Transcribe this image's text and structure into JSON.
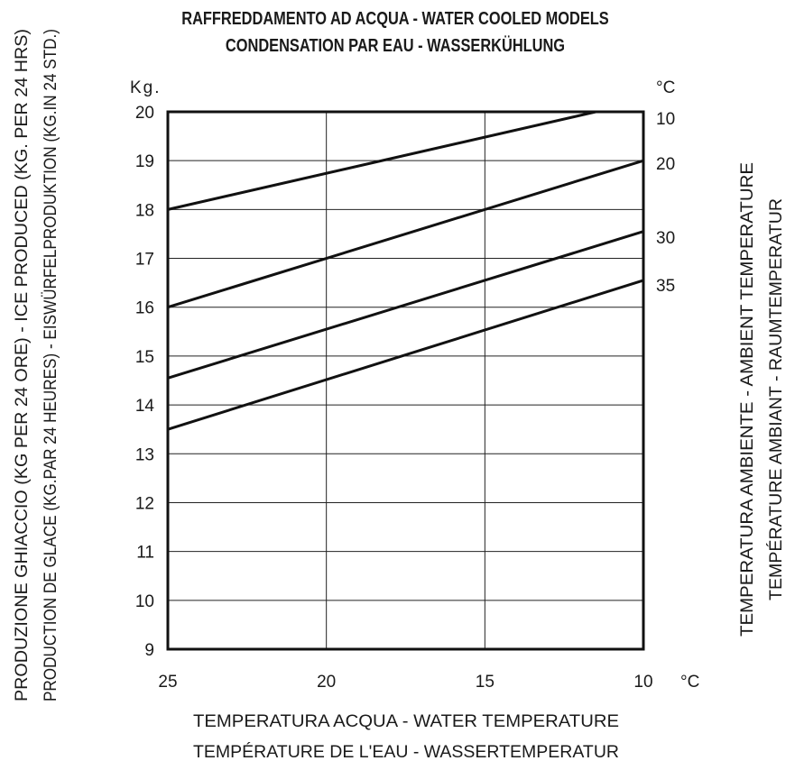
{
  "chart_data": {
    "type": "line",
    "title": [
      "RAFFREDDAMENTO AD ACQUA - WATER COOLED MODELS",
      "CONDENSATION PAR EAU - WASSERKÜHLUNG"
    ],
    "xlabel": [
      "TEMPERATURA ACQUA - WATER TEMPERATURE",
      "TEMPÉRATURE DE L'EAU  - WASSERTEMPERATUR"
    ],
    "ylabel": [
      "PRODUZIONE GHIACCIO (KG PER 24 ORE) - ICE PRODUCED (KG. PER 24 HRS)",
      "PRODUCTION DE GLACE (KG.PAR 24 HEURES) - EISWÜRFELPRODUKTION (KG.IN 24 STD.)"
    ],
    "right_label": [
      "TEMPERATURA AMBIENTE - AMBIENT TEMPERATURE",
      "TEMPÉRATURE AMBIANT - RAUMTEMPERATUR"
    ],
    "y_unit": "Kg.",
    "x_unit": "°C",
    "right_unit": "°C",
    "xlim": [
      25,
      10
    ],
    "ylim": [
      9,
      20
    ],
    "x_ticks": [
      25,
      20,
      15,
      10
    ],
    "y_ticks": [
      9,
      10,
      11,
      12,
      13,
      14,
      15,
      16,
      17,
      18,
      19,
      20
    ],
    "grid": true,
    "series": [
      {
        "name": "10",
        "x": [
          25,
          11.5
        ],
        "y": [
          18.0,
          20.0
        ]
      },
      {
        "name": "20",
        "x": [
          25,
          10
        ],
        "y": [
          16.0,
          19.0
        ]
      },
      {
        "name": "30",
        "x": [
          25,
          10
        ],
        "y": [
          14.55,
          17.55
        ]
      },
      {
        "name": "35",
        "x": [
          25,
          10
        ],
        "y": [
          13.5,
          16.55
        ]
      }
    ]
  }
}
